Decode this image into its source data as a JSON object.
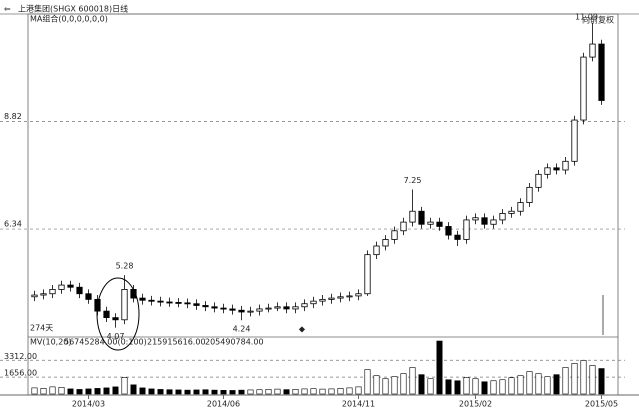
{
  "chart_data": {
    "type": "candlestick",
    "title": "上港集团(SHGX 600018)日线",
    "subtitle": "MA组合(0,0,0,0,0,0)",
    "adjust_label": "向前复权",
    "days_label": "274天",
    "volume_title": "MV(10,20)",
    "volume_stats": [
      "56745284.00(0:100)",
      "215915616.00",
      "205490784.00"
    ],
    "categories": [
      null,
      null,
      null,
      null,
      null,
      null,
      "2014/03",
      null,
      null,
      null,
      null,
      null,
      null,
      null,
      null,
      null,
      null,
      null,
      null,
      null,
      null,
      "2014/06",
      null,
      null,
      null,
      null,
      null,
      null,
      null,
      null,
      null,
      null,
      null,
      null,
      null,
      null,
      "2014/11",
      null,
      null,
      null,
      null,
      null,
      null,
      null,
      null,
      null,
      null,
      null,
      null,
      "2015/02",
      null,
      null,
      null,
      null,
      null,
      null,
      null,
      null,
      null,
      null,
      null,
      null,
      null,
      "2015/05"
    ],
    "open": [
      4.78,
      4.82,
      4.85,
      4.95,
      5.05,
      5.0,
      4.85,
      4.72,
      4.45,
      4.3,
      4.25,
      4.95,
      4.75,
      4.7,
      4.68,
      4.66,
      4.65,
      4.64,
      4.62,
      4.58,
      4.55,
      4.52,
      4.5,
      4.47,
      4.43,
      4.45,
      4.5,
      4.52,
      4.55,
      4.5,
      4.55,
      4.62,
      4.68,
      4.72,
      4.75,
      4.78,
      4.8,
      4.85,
      5.75,
      5.95,
      6.1,
      6.3,
      6.5,
      6.75,
      6.45,
      6.5,
      6.4,
      6.2,
      6.1,
      6.55,
      6.6,
      6.45,
      6.55,
      6.7,
      6.75,
      6.95,
      7.3,
      7.6,
      7.75,
      7.7,
      7.9,
      8.85,
      10.3,
      10.6
    ],
    "high": [
      4.92,
      4.95,
      5.05,
      5.15,
      5.15,
      5.1,
      4.95,
      4.82,
      4.55,
      4.4,
      5.28,
      5.05,
      4.85,
      4.8,
      4.78,
      4.76,
      4.75,
      4.74,
      4.72,
      4.68,
      4.65,
      4.62,
      4.6,
      4.57,
      4.55,
      4.6,
      4.62,
      4.65,
      4.65,
      4.65,
      4.72,
      4.78,
      4.82,
      4.85,
      4.88,
      4.9,
      4.95,
      5.85,
      6.05,
      6.2,
      6.4,
      6.6,
      7.25,
      6.85,
      6.6,
      6.6,
      6.5,
      6.3,
      6.65,
      6.7,
      6.7,
      6.65,
      6.8,
      6.85,
      7.05,
      7.4,
      7.7,
      7.85,
      7.85,
      8.0,
      8.95,
      10.4,
      11.09,
      10.7
    ],
    "low": [
      4.68,
      4.72,
      4.75,
      4.85,
      4.9,
      4.75,
      4.62,
      4.35,
      4.2,
      4.07,
      4.15,
      4.65,
      4.6,
      4.58,
      4.56,
      4.55,
      4.54,
      4.52,
      4.48,
      4.45,
      4.42,
      4.4,
      4.37,
      4.24,
      4.33,
      4.35,
      4.42,
      4.45,
      4.4,
      4.4,
      4.45,
      4.52,
      4.58,
      4.62,
      4.65,
      4.68,
      4.7,
      4.8,
      5.65,
      5.85,
      6.0,
      6.2,
      6.4,
      6.35,
      6.35,
      6.3,
      6.1,
      5.95,
      6.0,
      6.45,
      6.35,
      6.35,
      6.45,
      6.6,
      6.65,
      6.85,
      7.2,
      7.5,
      7.6,
      7.6,
      7.8,
      8.75,
      10.2,
      9.2
    ],
    "close": [
      4.82,
      4.85,
      4.95,
      5.05,
      5.0,
      4.85,
      4.72,
      4.45,
      4.3,
      4.25,
      4.95,
      4.75,
      4.7,
      4.68,
      4.66,
      4.65,
      4.64,
      4.62,
      4.58,
      4.55,
      4.52,
      4.5,
      4.47,
      4.43,
      4.45,
      4.5,
      4.52,
      4.55,
      4.5,
      4.55,
      4.62,
      4.68,
      4.72,
      4.75,
      4.78,
      4.8,
      4.85,
      5.75,
      5.95,
      6.1,
      6.3,
      6.5,
      6.75,
      6.45,
      6.5,
      6.4,
      6.2,
      6.1,
      6.55,
      6.6,
      6.45,
      6.55,
      6.7,
      6.75,
      6.95,
      7.3,
      7.6,
      7.75,
      7.7,
      7.9,
      8.85,
      10.3,
      10.6,
      9.3
    ],
    "volume": [
      600,
      550,
      700,
      650,
      500,
      450,
      500,
      550,
      600,
      700,
      1600,
      900,
      600,
      500,
      450,
      420,
      400,
      380,
      400,
      420,
      380,
      360,
      350,
      380,
      400,
      420,
      450,
      480,
      430,
      460,
      500,
      520,
      480,
      500,
      550,
      600,
      700,
      2400,
      1800,
      1500,
      1700,
      2000,
      2600,
      1900,
      1500,
      5200,
      1400,
      1300,
      1600,
      1500,
      1200,
      1300,
      1400,
      1600,
      1800,
      2200,
      2000,
      1700,
      1900,
      2600,
      3000,
      3300,
      2800,
      2500
    ],
    "ylim": [
      3.9,
      11.2
    ],
    "yticks": [
      6.34,
      8.82
    ],
    "volume_ylim": [
      0,
      5300
    ],
    "volume_yticks": [
      {
        "value": 1656,
        "label": "1656.00"
      },
      {
        "value": 3312,
        "label": "3312.00"
      }
    ],
    "grid": true,
    "color": "#000000"
  }
}
